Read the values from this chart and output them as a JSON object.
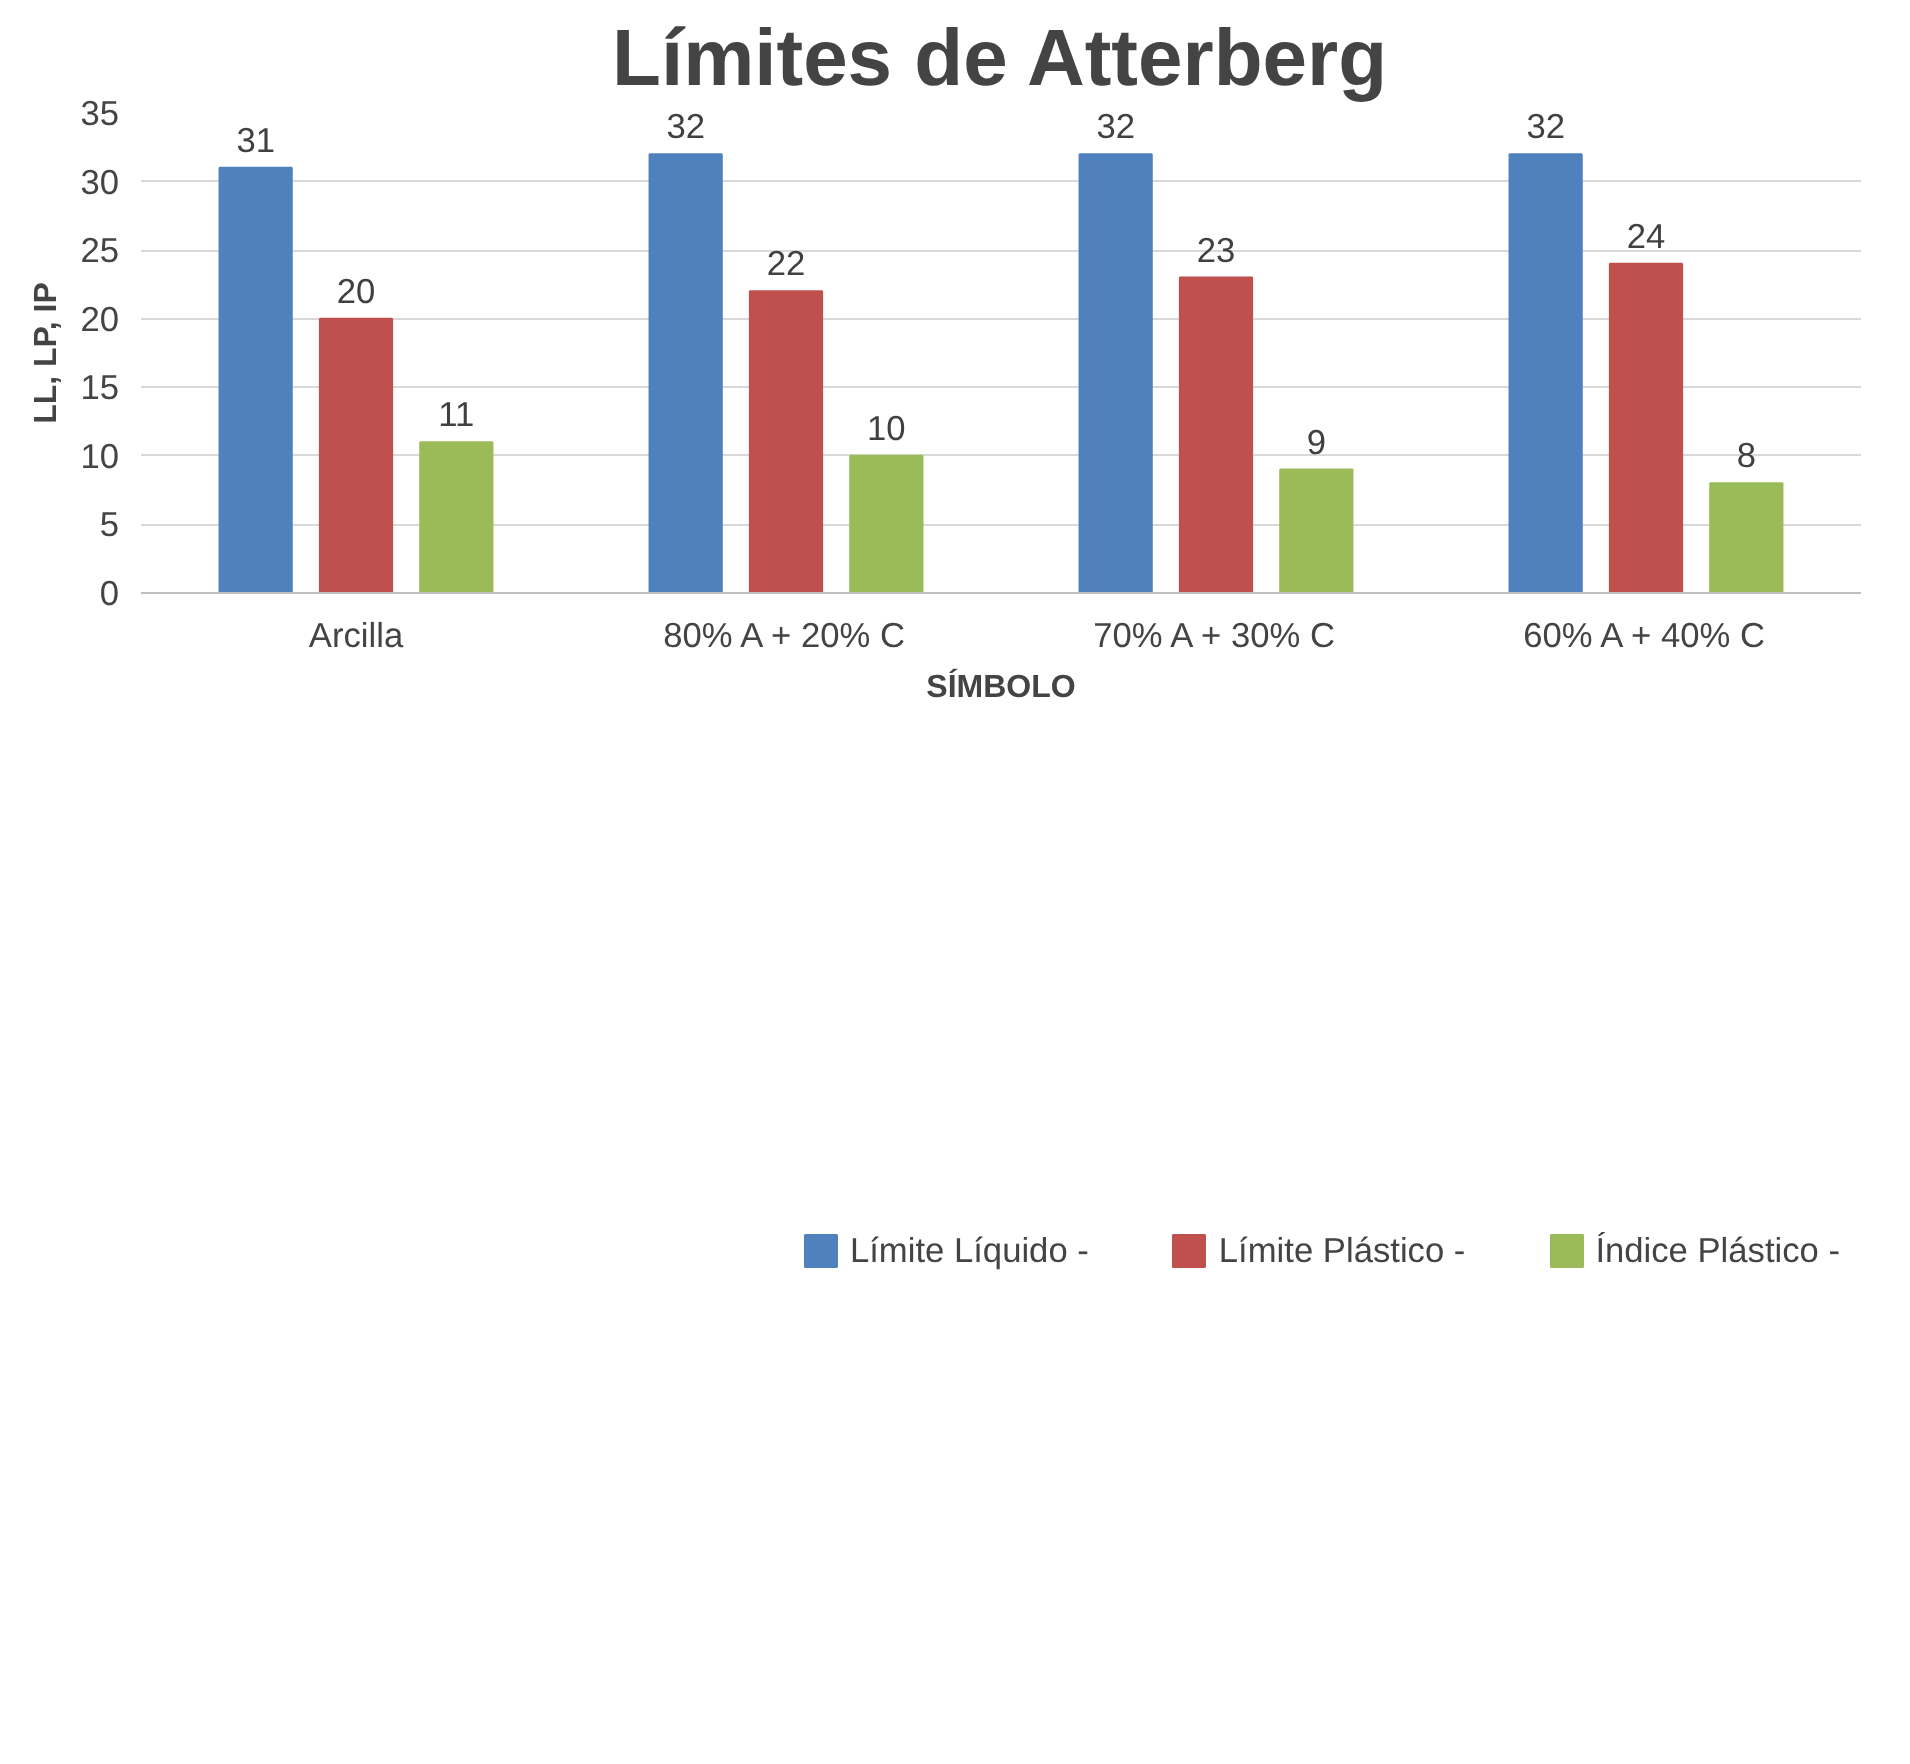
{
  "chart_data": {
    "type": "bar",
    "title": "Límites de Atterberg",
    "xlabel": "SÍMBOLO",
    "ylabel": "LL, LP, IP",
    "categories": [
      "Arcilla",
      "80% A + 20% C",
      "70% A + 30% C",
      "60% A + 40% C"
    ],
    "series": [
      {
        "name": "Límite Líquido -",
        "color": "#4f81bd",
        "values": [
          31,
          32,
          32,
          32
        ]
      },
      {
        "name": "Límite Plástico -",
        "color": "#c0504d",
        "values": [
          20,
          22,
          23,
          24
        ]
      },
      {
        "name": "Índice Plástico -",
        "color": "#9bbb59",
        "values": [
          11,
          10,
          9,
          8
        ]
      }
    ],
    "ylim": [
      0,
      35
    ],
    "yticks": [
      0,
      5,
      10,
      15,
      20,
      25,
      30,
      35
    ],
    "grid": "y",
    "legend": "bottom",
    "data_labels": true
  }
}
